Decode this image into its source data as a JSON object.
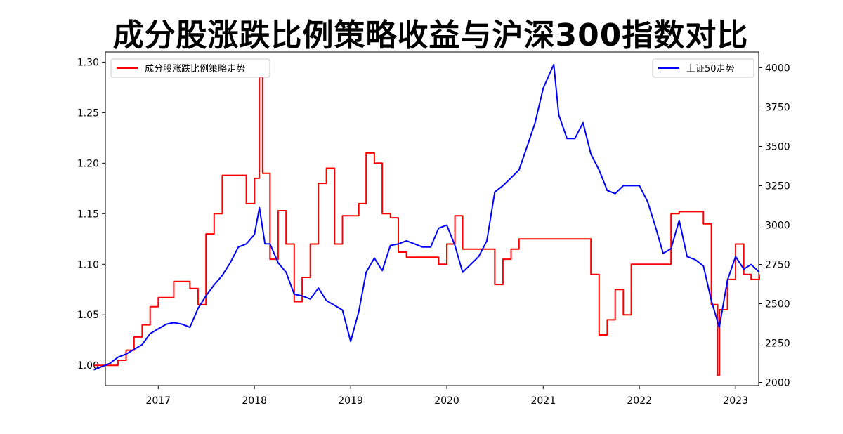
{
  "chart_data": {
    "type": "line",
    "title": "成分股涨跌比例策略收益与沪深300指数对比",
    "x_tick_labels": [
      "2017",
      "2018",
      "2019",
      "2020",
      "2021",
      "2022",
      "2023"
    ],
    "x_range": [
      "2016-01-01",
      "2023-07-01"
    ],
    "left_axis": {
      "ylim": [
        0.98,
        1.31
      ],
      "ticks": [
        1.0,
        1.05,
        1.1,
        1.15,
        1.2,
        1.25,
        1.3
      ],
      "tick_labels": [
        "1.00",
        "1.05",
        "1.10",
        "1.15",
        "1.20",
        "1.25",
        "1.30"
      ]
    },
    "right_axis": {
      "ylim": [
        1980,
        4100
      ],
      "ticks": [
        2000,
        2250,
        2500,
        2750,
        3000,
        3250,
        3500,
        3750,
        4000
      ],
      "tick_labels": [
        "2000",
        "2250",
        "2500",
        "2750",
        "3000",
        "3250",
        "3500",
        "3750",
        "4000"
      ]
    },
    "grid": false,
    "series": [
      {
        "name": "成分股涨跌比例策略走势",
        "axis": "left",
        "color": "#ff0000",
        "legend_position": "top-left",
        "step": true,
        "x": [
          "2016-05-01",
          "2016-07-01",
          "2016-08-01",
          "2016-09-01",
          "2016-10-01",
          "2016-11-01",
          "2016-12-01",
          "2017-01-01",
          "2017-03-01",
          "2017-04-01",
          "2017-05-01",
          "2017-06-01",
          "2017-07-01",
          "2017-08-01",
          "2017-09-01",
          "2017-10-01",
          "2017-11-01",
          "2017-12-01",
          "2018-01-01",
          "2018-01-20",
          "2018-02-01",
          "2018-03-01",
          "2018-04-01",
          "2018-05-01",
          "2018-06-01",
          "2018-07-01",
          "2018-08-01",
          "2018-09-01",
          "2018-10-01",
          "2018-11-01",
          "2018-12-01",
          "2019-01-01",
          "2019-02-01",
          "2019-03-01",
          "2019-04-01",
          "2019-05-01",
          "2019-06-01",
          "2019-07-01",
          "2019-08-01",
          "2019-09-01",
          "2019-10-01",
          "2019-11-01",
          "2019-12-01",
          "2020-01-01",
          "2020-02-01",
          "2020-03-01",
          "2020-04-01",
          "2020-05-01",
          "2020-06-01",
          "2020-07-01",
          "2020-08-01",
          "2020-09-01",
          "2020-10-01",
          "2020-11-01",
          "2021-01-01",
          "2021-04-01",
          "2021-06-01",
          "2021-07-01",
          "2021-08-01",
          "2021-09-01",
          "2021-10-01",
          "2021-11-01",
          "2021-12-01",
          "2022-01-01",
          "2022-04-01",
          "2022-05-01",
          "2022-06-01",
          "2022-07-01",
          "2022-08-01",
          "2022-09-01",
          "2022-10-01",
          "2022-10-25",
          "2022-11-01",
          "2022-12-01",
          "2023-01-01",
          "2023-02-01",
          "2023-03-01",
          "2023-04-01"
        ],
        "values": [
          1.0,
          1.0,
          1.005,
          1.015,
          1.028,
          1.04,
          1.058,
          1.067,
          1.083,
          1.083,
          1.076,
          1.06,
          1.13,
          1.15,
          1.188,
          1.188,
          1.188,
          1.16,
          1.185,
          1.285,
          1.19,
          1.105,
          1.153,
          1.12,
          1.063,
          1.087,
          1.12,
          1.18,
          1.195,
          1.12,
          1.148,
          1.148,
          1.16,
          1.21,
          1.2,
          1.15,
          1.146,
          1.112,
          1.107,
          1.107,
          1.107,
          1.107,
          1.1,
          1.12,
          1.148,
          1.115,
          1.115,
          1.115,
          1.115,
          1.08,
          1.105,
          1.115,
          1.125,
          1.125,
          1.125,
          1.125,
          1.125,
          1.09,
          1.03,
          1.045,
          1.075,
          1.05,
          1.1,
          1.1,
          1.1,
          1.15,
          1.152,
          1.152,
          1.152,
          1.14,
          1.06,
          0.99,
          1.055,
          1.085,
          1.12,
          1.09,
          1.085,
          1.09
        ]
      },
      {
        "name": "上证50走势",
        "axis": "right",
        "color": "#0000ff",
        "legend_position": "top-right",
        "step": false,
        "x": [
          "2016-05-01",
          "2016-06-01",
          "2016-07-01",
          "2016-08-01",
          "2016-09-01",
          "2016-10-01",
          "2016-11-01",
          "2016-12-01",
          "2017-01-01",
          "2017-02-01",
          "2017-03-01",
          "2017-04-01",
          "2017-05-01",
          "2017-06-01",
          "2017-07-01",
          "2017-08-01",
          "2017-09-01",
          "2017-10-01",
          "2017-11-01",
          "2017-12-01",
          "2018-01-01",
          "2018-01-20",
          "2018-02-10",
          "2018-03-01",
          "2018-04-01",
          "2018-05-01",
          "2018-06-01",
          "2018-07-01",
          "2018-08-01",
          "2018-09-01",
          "2018-10-01",
          "2018-11-01",
          "2018-12-01",
          "2019-01-01",
          "2019-02-01",
          "2019-03-01",
          "2019-04-01",
          "2019-05-01",
          "2019-06-01",
          "2019-07-01",
          "2019-08-01",
          "2019-09-01",
          "2019-10-01",
          "2019-11-01",
          "2019-12-01",
          "2020-01-01",
          "2020-02-01",
          "2020-03-01",
          "2020-04-01",
          "2020-05-01",
          "2020-06-01",
          "2020-07-01",
          "2020-08-01",
          "2020-09-01",
          "2020-10-01",
          "2020-11-01",
          "2020-12-01",
          "2021-01-01",
          "2021-02-10",
          "2021-03-01",
          "2021-04-01",
          "2021-05-01",
          "2021-06-01",
          "2021-07-01",
          "2021-08-01",
          "2021-09-01",
          "2021-10-01",
          "2021-11-01",
          "2021-12-01",
          "2022-01-01",
          "2022-02-01",
          "2022-03-01",
          "2022-04-01",
          "2022-05-01",
          "2022-06-01",
          "2022-07-01",
          "2022-08-01",
          "2022-09-01",
          "2022-10-01",
          "2022-10-31",
          "2022-12-01",
          "2023-01-01",
          "2023-02-01",
          "2023-03-01",
          "2023-04-01"
        ],
        "values": [
          2080,
          2100,
          2120,
          2160,
          2180,
          2210,
          2240,
          2310,
          2340,
          2370,
          2380,
          2370,
          2350,
          2470,
          2550,
          2620,
          2680,
          2760,
          2860,
          2880,
          2940,
          3110,
          2880,
          2880,
          2760,
          2700,
          2560,
          2550,
          2530,
          2600,
          2520,
          2490,
          2460,
          2260,
          2450,
          2700,
          2790,
          2710,
          2870,
          2880,
          2900,
          2880,
          2860,
          2860,
          2980,
          3000,
          2870,
          2700,
          2750,
          2800,
          2900,
          3210,
          3250,
          3300,
          3350,
          3500,
          3650,
          3870,
          4020,
          3700,
          3550,
          3550,
          3650,
          3450,
          3350,
          3220,
          3200,
          3250,
          3250,
          3250,
          3150,
          3000,
          2820,
          2850,
          3030,
          2800,
          2780,
          2740,
          2520,
          2350,
          2650,
          2800,
          2720,
          2750,
          2700
        ]
      }
    ]
  }
}
